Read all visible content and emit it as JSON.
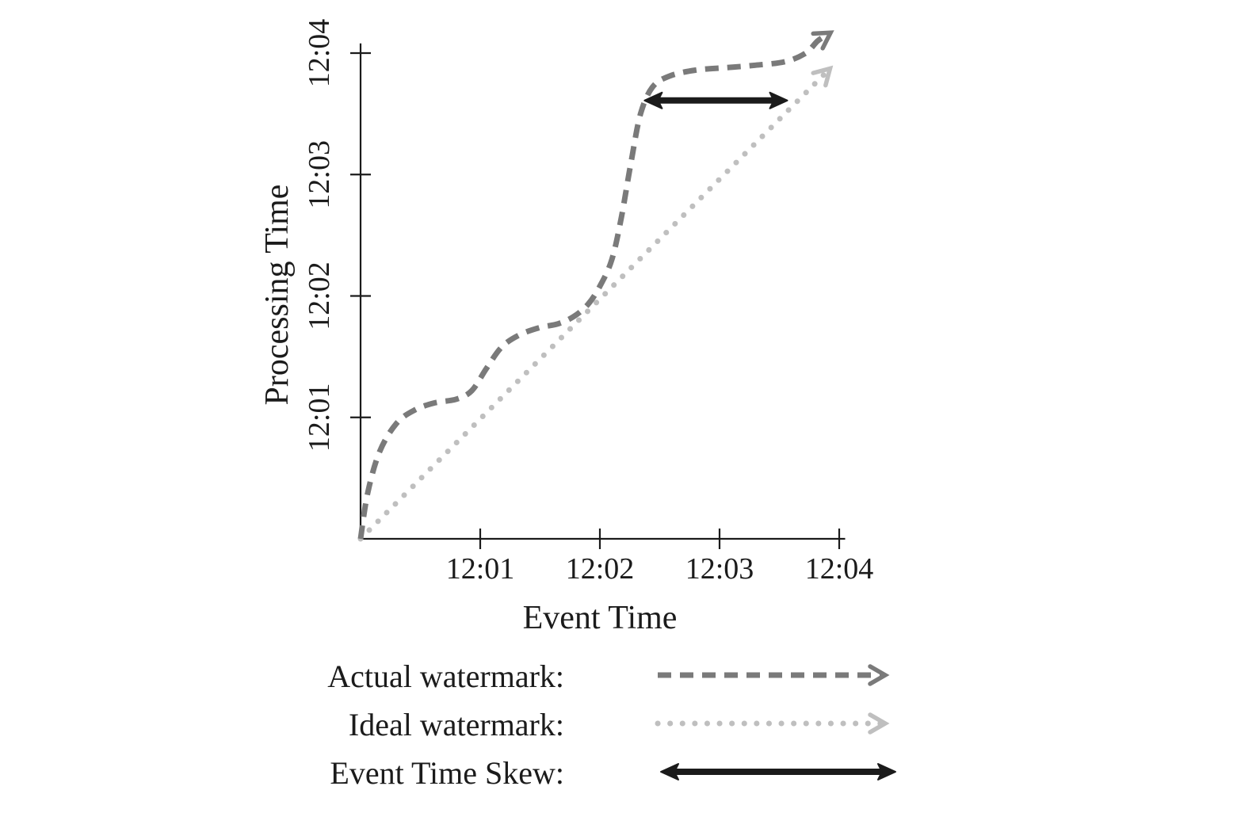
{
  "chart_data": {
    "type": "line",
    "title": "",
    "xlabel": "Event Time",
    "ylabel": "Processing Time",
    "x_unit": "minutes after 12:00",
    "y_unit": "minutes after 12:00",
    "x_range": [
      0,
      4.3
    ],
    "y_range": [
      0,
      4.3
    ],
    "grid": false,
    "axis_color": "#1b1b1b",
    "x_tick_values": [
      1,
      2,
      3,
      4
    ],
    "x_tick_labels": [
      "12:01",
      "12:02",
      "12:03",
      "12:04"
    ],
    "y_tick_values": [
      1,
      2,
      3,
      4
    ],
    "y_tick_labels": [
      "12:01",
      "12:02",
      "12:03",
      "12:04"
    ],
    "series": [
      {
        "name": "Actual watermark",
        "style": "dashed",
        "color": "#7a7a7a",
        "arrow_end": true,
        "points": [
          [
            0.0,
            0.0
          ],
          [
            0.06,
            0.38
          ],
          [
            0.16,
            0.72
          ],
          [
            0.3,
            0.95
          ],
          [
            0.45,
            1.06
          ],
          [
            0.62,
            1.12
          ],
          [
            0.8,
            1.15
          ],
          [
            0.93,
            1.22
          ],
          [
            1.05,
            1.4
          ],
          [
            1.18,
            1.58
          ],
          [
            1.33,
            1.68
          ],
          [
            1.5,
            1.74
          ],
          [
            1.65,
            1.77
          ],
          [
            1.78,
            1.83
          ],
          [
            1.9,
            1.93
          ],
          [
            2.0,
            2.08
          ],
          [
            2.1,
            2.3
          ],
          [
            2.18,
            2.65
          ],
          [
            2.26,
            3.1
          ],
          [
            2.34,
            3.5
          ],
          [
            2.44,
            3.72
          ],
          [
            2.58,
            3.81
          ],
          [
            2.8,
            3.86
          ],
          [
            3.05,
            3.88
          ],
          [
            3.3,
            3.9
          ],
          [
            3.55,
            3.93
          ],
          [
            3.72,
            4.0
          ],
          [
            3.82,
            4.1
          ],
          [
            3.9,
            4.15
          ]
        ]
      },
      {
        "name": "Ideal watermark",
        "style": "dotted",
        "color": "#bfbfbf",
        "arrow_end": true,
        "points": [
          [
            0.0,
            0.0
          ],
          [
            3.9,
            3.85
          ]
        ]
      }
    ],
    "annotations": [
      {
        "name": "Event Time Skew",
        "style": "double-arrow",
        "color": "#1b1b1b",
        "from": [
          2.44,
          3.61
        ],
        "to": [
          3.5,
          3.61
        ]
      }
    ],
    "legend": {
      "position": "bottom-left",
      "items": [
        {
          "label": "Actual watermark:",
          "style": "dashed",
          "color": "#7a7a7a"
        },
        {
          "label": "Ideal watermark:",
          "style": "dotted",
          "color": "#bfbfbf"
        },
        {
          "label": "Event Time Skew:",
          "style": "double-arrow",
          "color": "#1b1b1b"
        }
      ]
    }
  }
}
